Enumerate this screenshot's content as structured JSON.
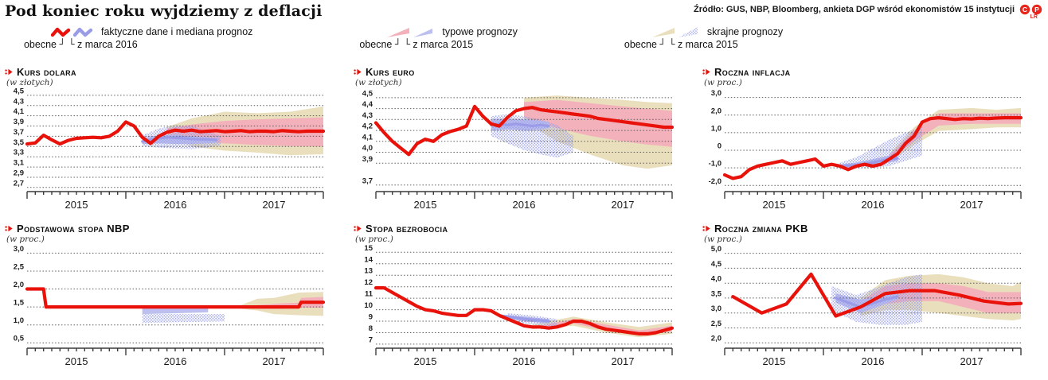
{
  "page": {
    "title": "Pod koniec roku wyjdziemy z deflacji",
    "source": "Źródło: GUS, NBP, Bloomberg, ankieta DGP wśród ekonomistów 15 instytucji",
    "credit": "LR"
  },
  "legend": {
    "groups": [
      {
        "label": "faktyczne dane i mediana prognoz",
        "current_label": "obecne",
        "old_label": "z marca 2016"
      },
      {
        "label": "typowe prognozy",
        "current_label": "obecne",
        "old_label": "z marca 2015"
      },
      {
        "label": "skrajne prognozy",
        "current_label": "obecne",
        "old_label": "z marca 2015"
      }
    ]
  },
  "colors": {
    "line": "#e8120b",
    "old_line": "#9a9ce8",
    "typical": "#f3b1bc",
    "old_typical": "#bdbfef",
    "extreme": "#eadfbd",
    "old_extreme": "#9aa0e6",
    "grid": "#5c5c5c",
    "axis": "#3a3a3a",
    "accent": "#e8120b",
    "badge": "#e8251c"
  },
  "chart_data": [
    {
      "type": "line",
      "title": "Kurs dolara",
      "unit": "(w złotych)",
      "ylim": [
        2.62,
        4.56
      ],
      "yticks": [
        [
          4.5,
          "4,5"
        ],
        [
          4.3,
          "4,3"
        ],
        [
          4.1,
          "4,1"
        ],
        [
          3.9,
          "3,9"
        ],
        [
          3.7,
          "3,7"
        ],
        [
          3.5,
          "3,5"
        ],
        [
          3.3,
          "3,3"
        ],
        [
          3.1,
          "3,1"
        ],
        [
          2.9,
          "2,9"
        ],
        [
          2.7,
          "2,7"
        ]
      ],
      "xlabels": [
        "2015",
        "2016",
        "2017"
      ],
      "series": {
        "actual": [
          3.55,
          3.57,
          3.72,
          3.63,
          3.55,
          3.62,
          3.66,
          3.67,
          3.68,
          3.67,
          3.7,
          3.8,
          3.98,
          3.9,
          3.68,
          3.56,
          3.7,
          3.78,
          3.82,
          3.8,
          3.82,
          3.79,
          3.8,
          3.81,
          3.79,
          3.8,
          3.81,
          3.79,
          3.8,
          3.8,
          3.79,
          3.81,
          3.8,
          3.79,
          3.8,
          3.8,
          3.8
        ],
        "old_median": {
          "x": [
            14,
            15,
            16,
            17,
            18,
            19,
            20,
            21,
            22,
            23
          ],
          "y": [
            3.6,
            3.63,
            3.66,
            3.68,
            3.67,
            3.66,
            3.65,
            3.64,
            3.64,
            3.63
          ]
        },
        "typical_band": {
          "x": [
            17,
            20,
            24,
            28,
            32,
            36
          ],
          "lo": [
            3.75,
            3.62,
            3.56,
            3.53,
            3.51,
            3.5
          ],
          "hi": [
            3.85,
            3.93,
            4.0,
            4.03,
            4.05,
            4.07
          ]
        },
        "extreme_band": {
          "x": [
            17,
            20,
            24,
            28,
            32,
            36
          ],
          "lo": [
            3.72,
            3.5,
            3.42,
            3.38,
            3.33,
            3.35
          ],
          "hi": [
            3.88,
            4.05,
            4.18,
            4.15,
            4.18,
            4.28
          ]
        },
        "old_typical_band": {
          "x": [
            14,
            16,
            18,
            20,
            22,
            23
          ],
          "lo": [
            3.55,
            3.56,
            3.55,
            3.55,
            3.56,
            3.57
          ],
          "hi": [
            3.66,
            3.72,
            3.73,
            3.7,
            3.68,
            3.66
          ]
        },
        "old_extreme_band": {
          "x": [
            14,
            16,
            18,
            20,
            22,
            23.5
          ],
          "lo": [
            3.5,
            3.48,
            3.46,
            3.45,
            3.48,
            3.52
          ],
          "hi": [
            3.72,
            3.85,
            3.92,
            3.9,
            3.8,
            3.7
          ]
        }
      }
    },
    {
      "type": "line",
      "title": "Kurs euro",
      "unit": "(w złotych)",
      "ylim": [
        3.64,
        4.55
      ],
      "yticks": [
        [
          4.5,
          "4,5"
        ],
        [
          4.4,
          "4,4"
        ],
        [
          4.3,
          "4,3"
        ],
        [
          4.2,
          "4,2"
        ],
        [
          4.1,
          "4,1"
        ],
        [
          4.0,
          "4,0"
        ],
        [
          3.9,
          "3,9"
        ],
        [
          3.7,
          "3,7"
        ]
      ],
      "xlabels": [
        "2015",
        "2016",
        "2017"
      ],
      "series": {
        "actual": [
          4.27,
          4.18,
          4.1,
          4.04,
          3.98,
          4.08,
          4.12,
          4.1,
          4.16,
          4.19,
          4.21,
          4.24,
          4.42,
          4.33,
          4.26,
          4.24,
          4.32,
          4.38,
          4.4,
          4.41,
          4.39,
          4.38,
          4.37,
          4.36,
          4.35,
          4.34,
          4.33,
          4.31,
          4.3,
          4.29,
          4.28,
          4.27,
          4.26,
          4.25,
          4.24,
          4.23,
          4.23
        ],
        "old_median": {
          "x": [
            14,
            15,
            16,
            17,
            18,
            19,
            20,
            21
          ],
          "y": [
            4.25,
            4.26,
            4.25,
            4.26,
            4.25,
            4.24,
            4.25,
            4.24
          ]
        },
        "typical_band": {
          "x": [
            18,
            22,
            26,
            30,
            33,
            36
          ],
          "lo": [
            4.32,
            4.22,
            4.15,
            4.1,
            4.07,
            4.05
          ],
          "hi": [
            4.46,
            4.48,
            4.45,
            4.42,
            4.4,
            4.38
          ]
        },
        "extreme_band": {
          "x": [
            18,
            22,
            26,
            30,
            33,
            36
          ],
          "lo": [
            4.28,
            4.1,
            3.98,
            3.88,
            3.85,
            3.88
          ],
          "hi": [
            4.5,
            4.52,
            4.5,
            4.48,
            4.46,
            4.45
          ]
        },
        "old_typical_band": {
          "x": [
            14,
            16,
            18,
            20,
            21
          ],
          "lo": [
            4.2,
            4.21,
            4.2,
            4.21,
            4.22
          ],
          "hi": [
            4.3,
            4.31,
            4.3,
            4.29,
            4.28
          ]
        },
        "old_extreme_band": {
          "x": [
            14,
            16,
            18,
            20,
            22,
            24
          ],
          "lo": [
            4.15,
            4.08,
            4.02,
            3.98,
            3.95,
            4.0
          ],
          "hi": [
            4.33,
            4.35,
            4.33,
            4.3,
            4.25,
            4.15
          ]
        }
      }
    },
    {
      "type": "line",
      "title": "Roczna inflacja",
      "unit": "(w proc.)",
      "ylim": [
        -2.35,
        3.3
      ],
      "yticks": [
        [
          3,
          "3,0"
        ],
        [
          2,
          "2,0"
        ],
        [
          1,
          "1,0"
        ],
        [
          0,
          "0"
        ],
        [
          -1,
          "-1,0"
        ],
        [
          -2,
          "-2,0"
        ]
      ],
      "xlabels": [
        "2015",
        "2016",
        "2017"
      ],
      "series": {
        "actual": [
          -1.4,
          -1.6,
          -1.5,
          -1.1,
          -0.9,
          -0.8,
          -0.7,
          -0.6,
          -0.8,
          -0.7,
          -0.6,
          -0.5,
          -0.9,
          -0.8,
          -0.9,
          -1.1,
          -0.9,
          -0.8,
          -0.9,
          -0.8,
          -0.5,
          -0.2,
          0.4,
          0.8,
          1.6,
          1.8,
          1.85,
          1.8,
          1.75,
          1.8,
          1.78,
          1.82,
          1.8,
          1.83,
          1.85,
          1.85,
          1.85
        ],
        "old_median": {
          "x": [
            14,
            16,
            18,
            20,
            21
          ],
          "y": [
            -0.9,
            -0.85,
            -0.7,
            -0.5,
            -0.45
          ]
        },
        "typical_band": {
          "x": [
            20,
            23,
            26,
            30,
            33,
            36
          ],
          "lo": [
            -0.6,
            0.5,
            1.4,
            1.5,
            1.5,
            1.5
          ],
          "hi": [
            -0.3,
            1.1,
            2.1,
            2.1,
            2.1,
            2.1
          ]
        },
        "extreme_band": {
          "x": [
            20,
            23,
            26,
            30,
            33,
            36
          ],
          "lo": [
            -0.7,
            0.3,
            1.1,
            1.2,
            1.3,
            1.3
          ],
          "hi": [
            -0.2,
            1.3,
            2.3,
            2.4,
            2.3,
            2.4
          ]
        },
        "old_typical_band": {
          "x": [
            14,
            16,
            18,
            20,
            21
          ],
          "lo": [
            -1.0,
            -0.95,
            -0.85,
            -0.7,
            -0.6
          ],
          "hi": [
            -0.8,
            -0.7,
            -0.5,
            -0.3,
            -0.25
          ]
        },
        "old_extreme_band": {
          "x": [
            14,
            16,
            18,
            20,
            22,
            24
          ],
          "lo": [
            -1.1,
            -1.05,
            -1.0,
            -0.9,
            -0.6,
            -0.3
          ],
          "hi": [
            -0.7,
            -0.4,
            0.1,
            0.6,
            1.0,
            1.35
          ]
        }
      }
    },
    {
      "type": "line",
      "title": "Podstawowa stopa NBP",
      "unit": "(w proc.)",
      "ylim": [
        0.35,
        3.12
      ],
      "yticks": [
        [
          3,
          "3,0"
        ],
        [
          2.5,
          "2,5"
        ],
        [
          2,
          "2,0"
        ],
        [
          1.5,
          "1,5"
        ],
        [
          1,
          "1,0"
        ],
        [
          0.5,
          "0,5"
        ]
      ],
      "xlabels": [
        "2015",
        "2016",
        "2017"
      ],
      "series": {
        "actual": {
          "x": [
            0,
            2,
            2.3,
            33,
            33.3,
            36
          ],
          "y": [
            2.0,
            2.0,
            1.5,
            1.5,
            1.63,
            1.63
          ]
        },
        "old_median": null,
        "typical_band": {
          "x": [
            28,
            31,
            33,
            33.3,
            36
          ],
          "lo": [
            1.45,
            1.45,
            1.48,
            1.48,
            1.48
          ],
          "hi": [
            1.55,
            1.6,
            1.62,
            1.75,
            1.78
          ]
        },
        "extreme_band": {
          "x": [
            26,
            28,
            30,
            33,
            36
          ],
          "lo": [
            1.45,
            1.4,
            1.3,
            1.27,
            1.25
          ],
          "hi": [
            1.55,
            1.73,
            1.75,
            1.9,
            1.92
          ]
        },
        "old_typical_band": {
          "x": [
            14,
            22
          ],
          "lo": [
            1.3,
            1.35
          ],
          "hi": [
            1.5,
            1.5
          ]
        },
        "old_extreme_band": {
          "x": [
            14,
            24
          ],
          "lo": [
            1.05,
            1.1
          ],
          "hi": [
            1.3,
            1.3
          ]
        }
      }
    },
    {
      "type": "line",
      "title": "Stopa bezrobocia",
      "unit": "(w proc.)",
      "ylim": [
        6.65,
        15.3
      ],
      "yticks": [
        [
          15,
          "15"
        ],
        [
          14,
          "14"
        ],
        [
          13,
          "13"
        ],
        [
          12,
          "12"
        ],
        [
          11,
          "11"
        ],
        [
          10,
          "10"
        ],
        [
          9,
          "9"
        ],
        [
          8,
          "8"
        ],
        [
          7,
          "7"
        ]
      ],
      "xlabels": [
        "2015",
        "2016",
        "2017"
      ],
      "series": {
        "actual": [
          11.9,
          11.9,
          11.5,
          11.1,
          10.7,
          10.3,
          10.0,
          9.9,
          9.7,
          9.6,
          9.5,
          9.5,
          10.0,
          10.0,
          9.9,
          9.5,
          9.2,
          8.9,
          8.6,
          8.5,
          8.5,
          8.4,
          8.5,
          8.7,
          9.0,
          9.0,
          8.8,
          8.5,
          8.3,
          8.2,
          8.1,
          8.0,
          7.9,
          7.9,
          8.0,
          8.2,
          8.4
        ],
        "old_median": {
          "x": [
            15,
            18,
            21
          ],
          "y": [
            9.5,
            9.2,
            9.0
          ]
        },
        "typical_band": {
          "x": [
            20,
            24,
            28,
            32,
            36
          ],
          "lo": [
            8.3,
            8.8,
            8.2,
            7.8,
            8.1
          ],
          "hi": [
            8.6,
            9.2,
            8.7,
            8.2,
            8.6
          ]
        },
        "extreme_band": {
          "x": [
            19,
            24,
            28,
            32,
            36
          ],
          "lo": [
            8.3,
            8.6,
            8.0,
            7.6,
            7.9
          ],
          "hi": [
            8.7,
            9.4,
            8.9,
            8.5,
            8.9
          ]
        },
        "old_typical_band": {
          "x": [
            15,
            18,
            21
          ],
          "lo": [
            9.3,
            9.0,
            8.8
          ],
          "hi": [
            9.6,
            9.4,
            9.2
          ]
        },
        "old_extreme_band": {
          "x": [
            16,
            19,
            22
          ],
          "lo": [
            9.0,
            8.7,
            8.5
          ],
          "hi": [
            9.7,
            9.5,
            9.2
          ]
        }
      }
    },
    {
      "type": "line",
      "title": "Roczna zmiana PKB",
      "unit": "(w proc.)",
      "ylim": [
        1.82,
        5.15
      ],
      "yticks": [
        [
          5,
          "5,0"
        ],
        [
          4.5,
          "4,5"
        ],
        [
          4,
          "4,0"
        ],
        [
          3.5,
          "3,5"
        ],
        [
          3,
          "3,0"
        ],
        [
          2.5,
          "2,5"
        ],
        [
          2,
          "2,0"
        ]
      ],
      "xlabels": [
        "2015",
        "2016",
        "2017"
      ],
      "series": {
        "actual": {
          "x": [
            1,
            4.5,
            7.5,
            10.5,
            13.5,
            16.5,
            19.5,
            22.5,
            25.5,
            28.5,
            31.5,
            34.5,
            36
          ],
          "y": [
            3.55,
            3.0,
            3.3,
            4.3,
            2.9,
            3.2,
            3.65,
            3.75,
            3.75,
            3.6,
            3.4,
            3.3,
            3.32
          ]
        },
        "old_median": {
          "x": [
            13.5,
            16.5,
            19.5,
            21
          ],
          "y": [
            3.5,
            3.2,
            3.45,
            3.55
          ]
        },
        "typical_band": {
          "x": [
            16.5,
            19.5,
            22.5,
            26,
            29,
            32,
            36
          ],
          "lo": [
            3.1,
            3.3,
            3.4,
            3.4,
            3.2,
            3.0,
            3.0
          ],
          "hi": [
            3.4,
            3.9,
            4.0,
            4.0,
            3.9,
            3.7,
            3.7
          ]
        },
        "extreme_band": {
          "x": [
            16.5,
            19.5,
            22.5,
            26,
            29,
            32,
            35,
            36
          ],
          "lo": [
            2.9,
            3.1,
            3.1,
            3.0,
            2.9,
            2.8,
            2.75,
            2.8
          ],
          "hi": [
            3.5,
            4.1,
            4.25,
            4.3,
            4.2,
            4.0,
            3.9,
            4.05
          ]
        },
        "old_typical_band": {
          "x": [
            13.5,
            16.5,
            19.5,
            21
          ],
          "lo": [
            3.35,
            3.0,
            3.3,
            3.45
          ],
          "hi": [
            3.65,
            3.45,
            3.6,
            3.65
          ]
        },
        "old_extreme_band": {
          "x": [
            13,
            16,
            19,
            22,
            24
          ],
          "lo": [
            3.1,
            2.7,
            2.6,
            2.6,
            2.7
          ],
          "hi": [
            3.9,
            3.6,
            3.9,
            4.2,
            4.3
          ]
        }
      }
    }
  ]
}
